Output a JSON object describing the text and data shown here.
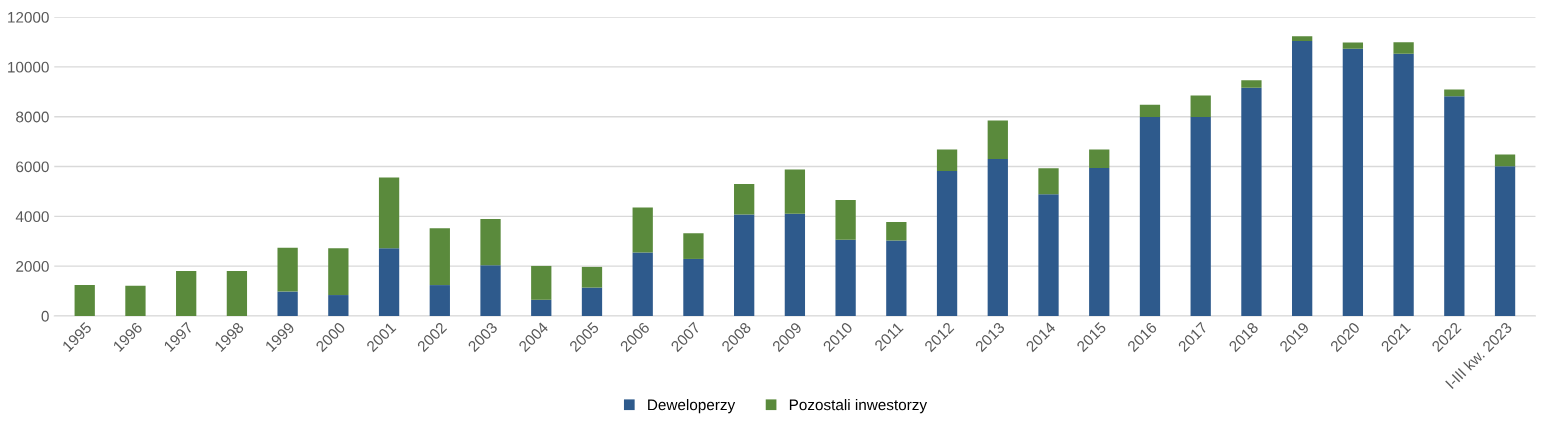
{
  "chart_data": {
    "type": "bar",
    "stacked": true,
    "categories": [
      "1995",
      "1996",
      "1997",
      "1998",
      "1999",
      "2000",
      "2001",
      "2002",
      "2003",
      "2004",
      "2005",
      "2006",
      "2007",
      "2008",
      "2009",
      "2010",
      "2011",
      "2012",
      "2013",
      "2014",
      "2015",
      "2016",
      "2017",
      "2018",
      "2019",
      "2020",
      "2021",
      "2022",
      "I-III kw. 2023"
    ],
    "series": [
      {
        "name": "Deweloperzy",
        "color": "#2e5a8c",
        "values": [
          0,
          0,
          0,
          0,
          980,
          840,
          2720,
          1240,
          2040,
          650,
          1140,
          2550,
          2290,
          4070,
          4100,
          3060,
          3030,
          5820,
          6300,
          4890,
          5940,
          7990,
          7990,
          9160,
          11040,
          10730,
          10530,
          8820,
          6010
        ]
      },
      {
        "name": "Pozostali inwestorzy",
        "color": "#5a8a3c",
        "values": [
          1240,
          1210,
          1810,
          1810,
          1760,
          1880,
          2840,
          2280,
          1850,
          1360,
          830,
          1810,
          1030,
          1230,
          1780,
          1600,
          740,
          860,
          1550,
          1040,
          740,
          490,
          860,
          300,
          190,
          250,
          460,
          270,
          470
        ]
      }
    ],
    "ylim": [
      0,
      12000
    ],
    "yticks": [
      0,
      2000,
      4000,
      6000,
      8000,
      10000,
      12000
    ],
    "grid": "y",
    "legend": "bottom"
  }
}
